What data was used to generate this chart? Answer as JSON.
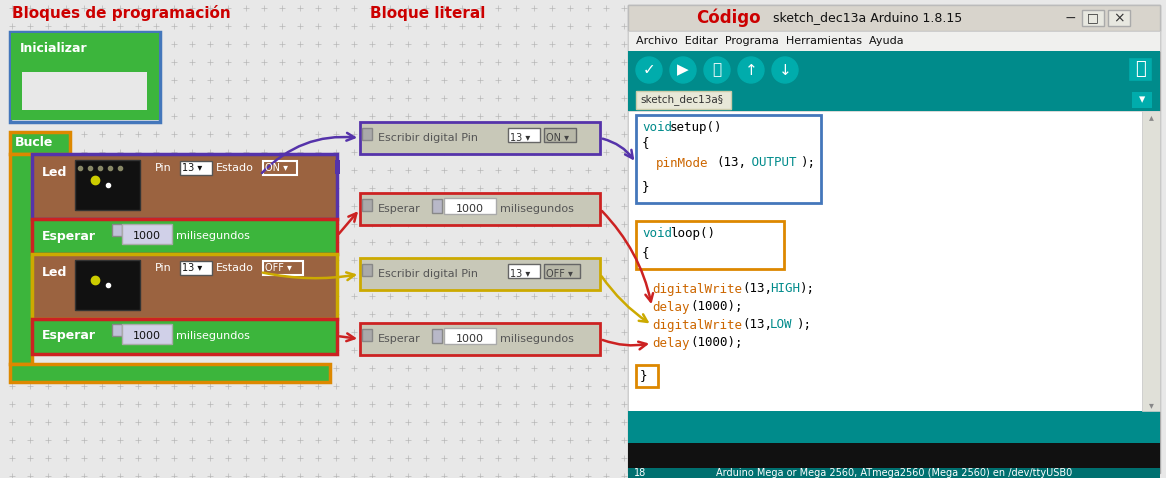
{
  "title_left": "Bloques de programación",
  "title_middle": "Bloque literal",
  "title_right": "Código",
  "title_color": "#cc0000",
  "bg_color": "#e8e8e8",
  "dot_color": "#cccccc",
  "green_block": "#3cb53c",
  "brown_block": "#9b6340",
  "init_block_border": "#4477bb",
  "bucle_border": "#dd8800",
  "led_on_border": "#5533aa",
  "esperar1_border": "#cc2222",
  "led_off_border": "#ccaa00",
  "esperar2_border": "#cc2222",
  "literal_bg": "#c8c8b8",
  "literal_escribir1_border": "#5533aa",
  "literal_esperar1_border": "#cc2222",
  "literal_escribir2_border": "#ccaa00",
  "literal_esperar2_border": "#cc2222",
  "code_setup_border": "#4477bb",
  "code_loop_border": "#dd8800",
  "code_close_border": "#dd8800",
  "arrow_purple": "#5533aa",
  "arrow_red": "#cc2222",
  "arrow_yellow": "#ccaa00",
  "teal": "#008b8b",
  "teal_dark": "#007070",
  "teal_light": "#00acac",
  "arduino_bg": "#e8e8e0",
  "code_keyword": "#008b8b",
  "code_func": "#cc6600",
  "code_const": "#008b8b",
  "code_black": "#000000"
}
